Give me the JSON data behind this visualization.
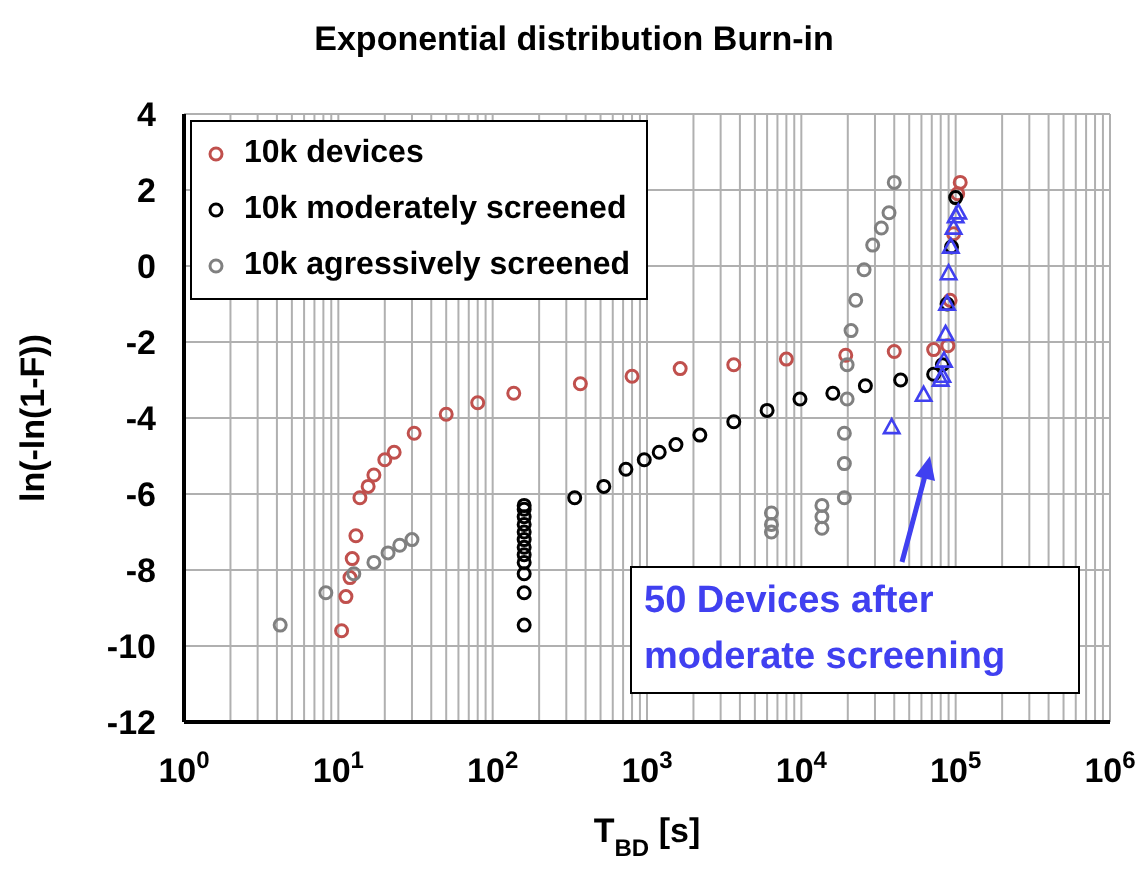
{
  "chart_data": {
    "type": "scatter",
    "title": "Exponential distribution Burn-in",
    "xlabel": "T$_{BD}$ [s]",
    "ylabel": "ln(-ln(1-F))",
    "log": "x",
    "grid": true,
    "legend": "top left",
    "xlim": [
      1,
      1000000
    ],
    "xticks": [
      {
        "value": 1,
        "label": "10$^{0}$"
      },
      {
        "value": 10,
        "label": "10$^{1}$"
      },
      {
        "value": 100,
        "label": "10$^{2}$"
      },
      {
        "value": 1000,
        "label": "10$^{3}$"
      },
      {
        "value": 10000,
        "label": "10$^{4}$"
      },
      {
        "value": 100000,
        "label": "10$^{5}$"
      },
      {
        "value": 1000000,
        "label": "10$^{6}$"
      }
    ],
    "ylim": [
      -12,
      4
    ],
    "yticks": [
      -12,
      -10,
      -8,
      -6,
      -4,
      -2,
      0,
      2,
      4
    ],
    "annotations": [
      "50 Devices after moderate screening"
    ],
    "series": [
      {
        "name": "10k devices",
        "color": "#c0504d",
        "marker": "circle",
        "x": [
          10.5,
          11.2,
          11.9,
          12.3,
          13,
          13.8,
          15.6,
          17,
          20,
          23,
          31,
          50,
          80,
          137,
          370,
          800,
          1640,
          3650,
          8000,
          19400,
          40000,
          72000,
          89000,
          92000,
          97000,
          103000,
          107000
        ],
        "values": [
          -9.6,
          -8.7,
          -8.2,
          -7.7,
          -7.1,
          -6.1,
          -5.8,
          -5.5,
          -5.1,
          -4.9,
          -4.4,
          -3.9,
          -3.6,
          -3.35,
          -3.1,
          -2.9,
          -2.7,
          -2.6,
          -2.45,
          -2.35,
          -2.25,
          -2.2,
          -2.1,
          -0.9,
          0.85,
          1.9,
          2.2
        ]
      },
      {
        "name": "10k moderately screened",
        "color": "#000000",
        "marker": "circle",
        "x": [
          160,
          160,
          160,
          160,
          160,
          160,
          160,
          160,
          160,
          160,
          160,
          160,
          340,
          525,
          730,
          960,
          1200,
          1540,
          2200,
          3650,
          6000,
          9800,
          16000,
          26000,
          44000,
          72000,
          82000,
          88000,
          94000,
          100000
        ],
        "values": [
          -9.45,
          -8.6,
          -8.1,
          -7.8,
          -7.6,
          -7.4,
          -7.2,
          -7.0,
          -6.8,
          -6.6,
          -6.4,
          -6.3,
          -6.1,
          -5.8,
          -5.35,
          -5.1,
          -4.9,
          -4.7,
          -4.45,
          -4.1,
          -3.8,
          -3.5,
          -3.35,
          -3.15,
          -3.0,
          -2.85,
          -2.6,
          -1,
          0.5,
          1.8
        ]
      },
      {
        "name": "10k agressively screened",
        "color": "#808080",
        "marker": "circle",
        "x": [
          4.2,
          8.3,
          12.6,
          17,
          21,
          25,
          30,
          6400,
          6400,
          6400,
          13600,
          13600,
          13600,
          19000,
          19000,
          19000,
          19800,
          19800,
          21000,
          22500,
          25500,
          29000,
          33000,
          37000,
          40000
        ],
        "values": [
          -9.45,
          -8.6,
          -8.1,
          -7.8,
          -7.55,
          -7.35,
          -7.2,
          -6.5,
          -6.8,
          -7.0,
          -6.3,
          -6.6,
          -6.9,
          -6.1,
          -5.2,
          -4.4,
          -3.5,
          -2.6,
          -1.7,
          -0.9,
          -0.1,
          0.55,
          1.0,
          1.4,
          2.2
        ]
      },
      {
        "color": "#4040f0",
        "marker": "triangle",
        "x": [
          38500,
          62000,
          80000,
          82000,
          84000,
          86000,
          88000,
          90000,
          93000,
          97000,
          100000,
          104000
        ],
        "values": [
          -4.25,
          -3.4,
          -3.0,
          -2.9,
          -2.5,
          -1.8,
          -1.0,
          -0.2,
          0.5,
          1.0,
          1.3,
          1.4
        ]
      }
    ]
  }
}
